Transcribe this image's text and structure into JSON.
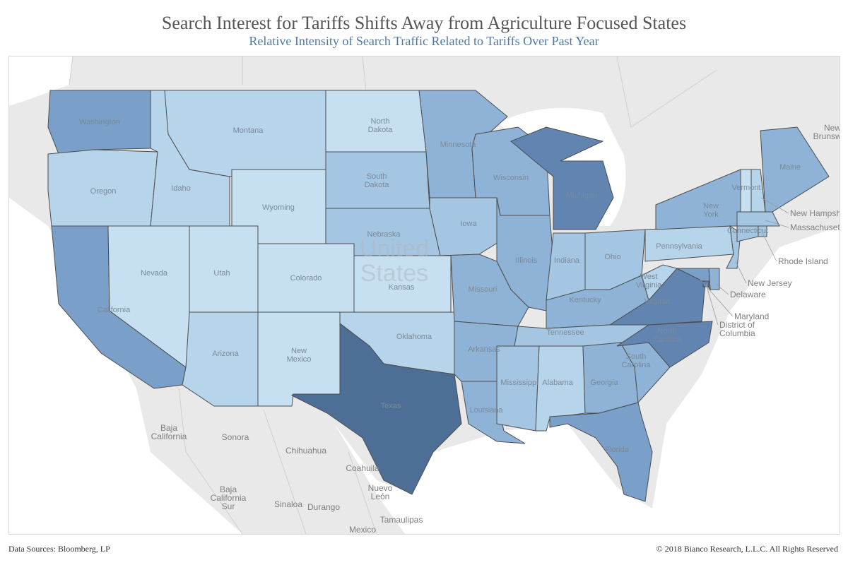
{
  "title": "Search Interest for Tariffs Shifts Away from Agriculture Focused States",
  "subtitle": "Relative Intensity of Search Traffic Related to Tariffs Over Past Year",
  "footer": {
    "source": "Data Sources: Bloomberg, LP",
    "copyright": "© 2018 Bianco Research, L.L.C. All Rights Reserved"
  },
  "country_label": [
    "United",
    "States"
  ],
  "colors": {
    "land": "#e9e9e9",
    "water": "#ffffff",
    "border": "#4d4d4d",
    "intensity_scale": [
      "#c6e0f1",
      "#b6d4ea",
      "#a4c6e2",
      "#8eb3d7",
      "#7a9fc8",
      "#6184b0",
      "#4d6f95"
    ]
  },
  "states": [
    {
      "name": "Washington",
      "label": "Washington",
      "level": 4
    },
    {
      "name": "Oregon",
      "label": "Oregon",
      "level": 1
    },
    {
      "name": "California",
      "label": "California",
      "level": 4
    },
    {
      "name": "Idaho",
      "label": "Idaho",
      "level": 1
    },
    {
      "name": "Nevada",
      "label": "Nevada",
      "level": 0
    },
    {
      "name": "Montana",
      "label": "Montana",
      "level": 1
    },
    {
      "name": "Wyoming",
      "label": "Wyoming",
      "level": 0
    },
    {
      "name": "Utah",
      "label": "Utah",
      "level": 0
    },
    {
      "name": "Colorado",
      "label": "Colorado",
      "level": 0
    },
    {
      "name": "Arizona",
      "label": "Arizona",
      "level": 1
    },
    {
      "name": "New Mexico",
      "label": "New Mexico",
      "level": 0
    },
    {
      "name": "North Dakota",
      "label": "North Dakota",
      "level": 0
    },
    {
      "name": "South Dakota",
      "label": "South Dakota",
      "level": 2
    },
    {
      "name": "Nebraska",
      "label": "Nebraska",
      "level": 2
    },
    {
      "name": "Kansas",
      "label": "Kansas",
      "level": 0
    },
    {
      "name": "Oklahoma",
      "label": "Oklahoma",
      "level": 1
    },
    {
      "name": "Texas",
      "label": "Texas",
      "level": 6
    },
    {
      "name": "Minnesota",
      "label": "Minnesota",
      "level": 3
    },
    {
      "name": "Iowa",
      "label": "Iowa",
      "level": 2
    },
    {
      "name": "Missouri",
      "label": "Missouri",
      "level": 3
    },
    {
      "name": "Arkansas",
      "label": "Arkansas",
      "level": 3
    },
    {
      "name": "Louisiana",
      "label": "Louisiana",
      "level": 3
    },
    {
      "name": "Wisconsin",
      "label": "Wisconsin",
      "level": 3
    },
    {
      "name": "Illinois",
      "label": "Illinois",
      "level": 3
    },
    {
      "name": "Michigan",
      "label": "Michigan",
      "level": 5
    },
    {
      "name": "Indiana",
      "label": "Indiana",
      "level": 2
    },
    {
      "name": "Ohio",
      "label": "Ohio",
      "level": 2
    },
    {
      "name": "Kentucky",
      "label": "Kentucky",
      "level": 3
    },
    {
      "name": "Tennessee",
      "label": "Tennessee",
      "level": 2
    },
    {
      "name": "Mississippi",
      "label": "Mississippi",
      "level": 2
    },
    {
      "name": "Alabama",
      "label": "Alabama",
      "level": 1
    },
    {
      "name": "Georgia",
      "label": "Georgia",
      "level": 3
    },
    {
      "name": "Florida",
      "label": "Florida",
      "level": 4
    },
    {
      "name": "South Carolina",
      "label": "South Carolina",
      "level": 3
    },
    {
      "name": "North Carolina",
      "label": "North Carolina",
      "level": 5
    },
    {
      "name": "Virginia",
      "label": "Virginia",
      "level": 5
    },
    {
      "name": "West Virginia",
      "label": "West Virginia",
      "level": 1
    },
    {
      "name": "Pennsylvania",
      "label": "Pennsylvania",
      "level": 1
    },
    {
      "name": "New York",
      "label": "New York",
      "level": 3
    },
    {
      "name": "New Jersey",
      "label": "New Jersey",
      "level": 2
    },
    {
      "name": "Delaware",
      "label": "Delaware",
      "level": 3
    },
    {
      "name": "Maryland",
      "label": "Maryland",
      "level": 4
    },
    {
      "name": "District of Columbia",
      "label": "District of Columbia",
      "level": 5
    },
    {
      "name": "Connecticut",
      "label": "Connecticut",
      "level": 2
    },
    {
      "name": "Rhode Island",
      "label": "Rhode Island",
      "level": 2
    },
    {
      "name": "Massachusetts",
      "label": "Massachusetts",
      "level": 2
    },
    {
      "name": "Vermont",
      "label": "Vermont",
      "level": 0
    },
    {
      "name": "New Hampshire",
      "label": "New Hampshire",
      "level": 1
    },
    {
      "name": "Maine",
      "label": "Maine",
      "level": 3
    }
  ],
  "callouts": [
    "New Hampshire",
    "Massachusetts",
    "Rhode Island",
    "New Jersey",
    "Delaware",
    "Maryland",
    "District of Columbia"
  ],
  "context_labels": [
    "Baja California",
    "Sonora",
    "Chihuahua",
    "Coahuila",
    "Nuevo León",
    "Baja California Sur",
    "Sinaloa",
    "Durango",
    "Tamaulipas",
    "Mexico",
    "New Brunswick"
  ]
}
